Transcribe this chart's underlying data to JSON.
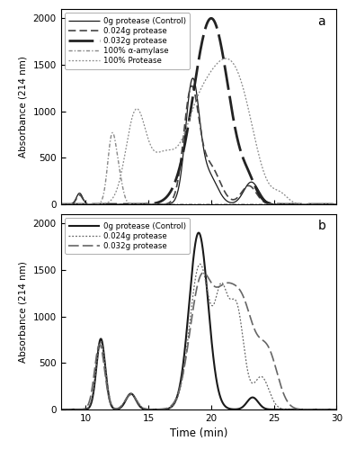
{
  "xlim": [
    8,
    30
  ],
  "ylim_a": [
    0,
    2100
  ],
  "ylim_b": [
    0,
    2100
  ],
  "yticks": [
    0,
    500,
    1000,
    1500,
    2000
  ],
  "xticks": [
    10,
    15,
    20,
    25,
    30
  ],
  "xlabel": "Time (min)",
  "ylabel": "Absorbance (214 nm)",
  "label_a": "a",
  "label_b": "b",
  "legend_a": [
    "0g protease (Control)",
    "0.024g protease",
    "0.032g protease",
    "100% α-amylase",
    "100% Protease"
  ],
  "legend_b": [
    "0g protease (Control)",
    "0.024g protease",
    "0.032g protease"
  ]
}
